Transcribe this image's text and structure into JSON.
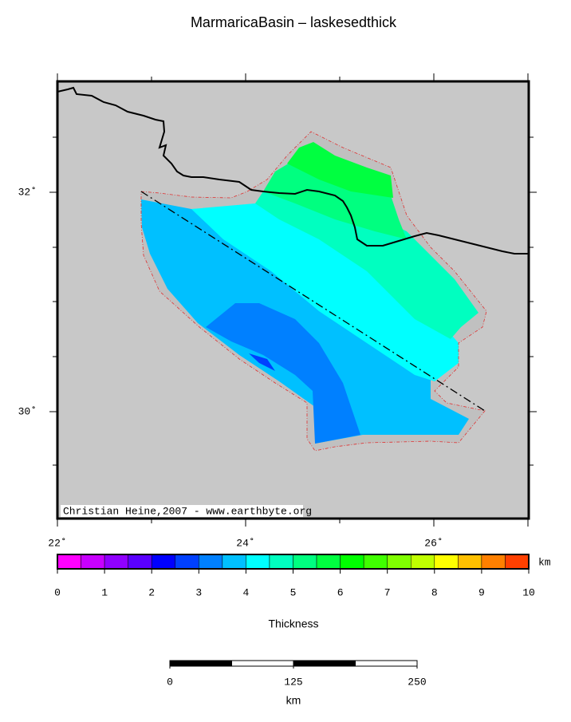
{
  "title": "MarmaricaBasin – laskesedthick",
  "map": {
    "lon_labels": [
      "22˚",
      "24˚",
      "26˚"
    ],
    "lat_labels": [
      "32˚",
      "30˚"
    ],
    "credit": "Christian Heine,2007 - www.earthbyte.org"
  },
  "colorbar": {
    "ticks": [
      0,
      1,
      2,
      3,
      4,
      5,
      6,
      7,
      8,
      9,
      10
    ],
    "unit": "km",
    "label": "Thickness",
    "colors": [
      "#ff00ff",
      "#c800ff",
      "#9000ff",
      "#5a00ff",
      "#0000ff",
      "#0040ff",
      "#0080ff",
      "#00c0ff",
      "#00ffff",
      "#00ffc0",
      "#00ff80",
      "#00ff40",
      "#00ff00",
      "#40ff00",
      "#80ff00",
      "#c0ff00",
      "#ffff00",
      "#ffc000",
      "#ff8000",
      "#ff4000"
    ]
  },
  "scale_bar": {
    "ticks": [
      0,
      125,
      250
    ],
    "unit": "km"
  }
}
